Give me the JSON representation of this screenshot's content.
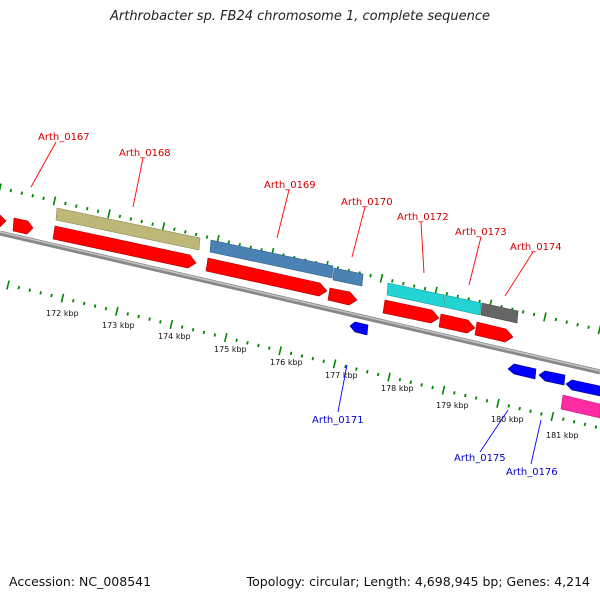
{
  "title": "Arthrobacter sp. FB24 chromosome 1, complete sequence",
  "accession_text": "Accession: NC_008541",
  "topology_text": "Topology: circular; Length: 4,698,945 bp; Genes: 4,214",
  "colors": {
    "forward_cds": "#ff0000",
    "reverse_cds": "#0000ff",
    "backbone": "#888888",
    "tick_green": "#008800",
    "label_forward": "#cc0000",
    "label_reverse": "#0000cc",
    "cog_olive": "#bdb778",
    "cog_steelblue": "#4a82b4",
    "cog_cyan": "#22d3d3",
    "cog_gray": "#666666",
    "cog_magenta": "#ff2ba2"
  },
  "scale_ticks_kbp": [
    {
      "value": 172,
      "label": "172 kbp"
    },
    {
      "value": 173,
      "label": "173 kbp"
    },
    {
      "value": 174,
      "label": "174 kbp"
    },
    {
      "value": 175,
      "label": "175 kbp"
    },
    {
      "value": 176,
      "label": "176 kbp"
    },
    {
      "value": 177,
      "label": "177 kbp"
    },
    {
      "value": 178,
      "label": "178 kbp"
    },
    {
      "value": 179,
      "label": "179 kbp"
    },
    {
      "value": 180,
      "label": "180 kbp"
    },
    {
      "value": 181,
      "label": "181 kbp"
    }
  ],
  "gene_labels": [
    {
      "id": "Arth_0167",
      "strand": "forward"
    },
    {
      "id": "Arth_0168",
      "strand": "forward"
    },
    {
      "id": "Arth_0169",
      "strand": "forward"
    },
    {
      "id": "Arth_0170",
      "strand": "forward"
    },
    {
      "id": "Arth_0172",
      "strand": "forward"
    },
    {
      "id": "Arth_0173",
      "strand": "forward"
    },
    {
      "id": "Arth_0174",
      "strand": "forward"
    },
    {
      "id": "Arth_0171",
      "strand": "reverse"
    },
    {
      "id": "Arth_0175",
      "strand": "reverse"
    },
    {
      "id": "Arth_0176",
      "strand": "reverse"
    }
  ]
}
